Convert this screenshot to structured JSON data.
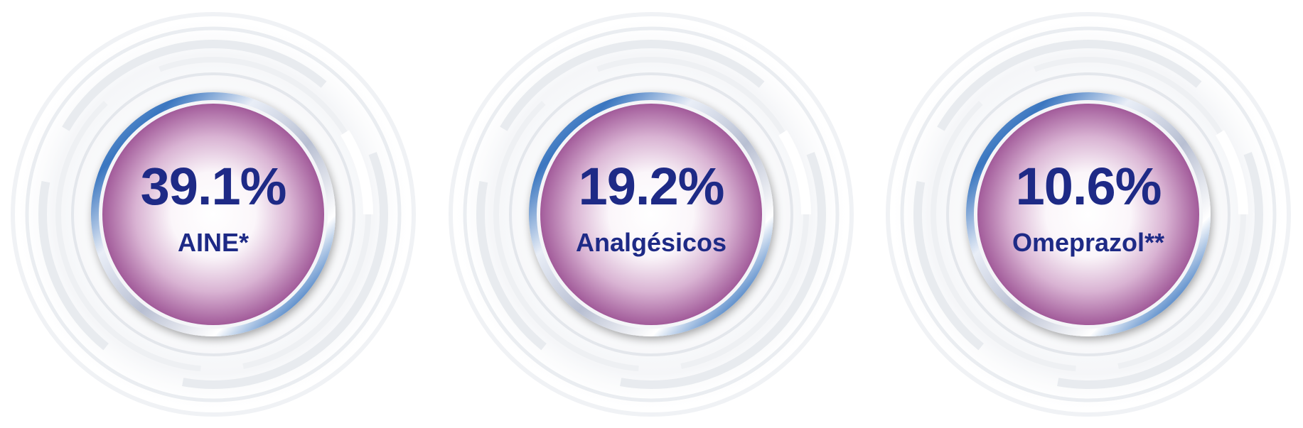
{
  "stats": [
    {
      "value": "39.1%",
      "label": "AINE*"
    },
    {
      "value": "19.2%",
      "label": "Analgésicos"
    },
    {
      "value": "10.6%",
      "label": "Omeprazol**"
    }
  ],
  "colors": {
    "text": "#1e2a86",
    "disc_edge": "#a25b9a",
    "disc_center": "#ffffff",
    "bezel": "#c9cfe0",
    "bezel_accent": "#3a76c0",
    "rings": "#e6e9ee"
  },
  "icons": [
    "concentric-rings-graphic"
  ]
}
